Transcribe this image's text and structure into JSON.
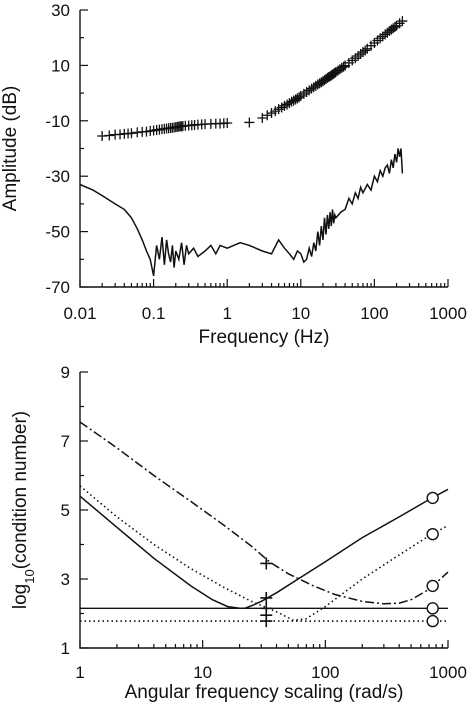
{
  "chart_data": [
    {
      "type": "line",
      "xlabel": "Frequency (Hz)",
      "ylabel": "Amplitude (dB)",
      "x_scale": "log",
      "xlim": [
        0.01,
        1000
      ],
      "ylim": [
        -70,
        30
      ],
      "x_ticks": [
        {
          "value": 0.01,
          "label": "0.01"
        },
        {
          "value": 0.1,
          "label": "0.1"
        },
        {
          "value": 1,
          "label": "1"
        },
        {
          "value": 10,
          "label": "10"
        },
        {
          "value": 100,
          "label": "100"
        },
        {
          "value": 1000,
          "label": "1000"
        }
      ],
      "y_ticks": [
        {
          "value": 30,
          "label": "30"
        },
        {
          "value": 10,
          "label": "10"
        },
        {
          "value": -10,
          "label": "-10"
        },
        {
          "value": -30,
          "label": "-30"
        },
        {
          "value": -50,
          "label": "-50"
        },
        {
          "value": -70,
          "label": "-70"
        }
      ],
      "grid": false,
      "series": [
        {
          "style": "cross-markers",
          "x": [
            0.02,
            0.025,
            0.03,
            0.035,
            0.04,
            0.045,
            0.05,
            0.06,
            0.07,
            0.08,
            0.09,
            0.1,
            0.11,
            0.12,
            0.13,
            0.14,
            0.15,
            0.16,
            0.17,
            0.18,
            0.19,
            0.2,
            0.21,
            0.22,
            0.23,
            0.24,
            0.25,
            0.27,
            0.3,
            0.33,
            0.36,
            0.4,
            0.45,
            0.5,
            0.6,
            0.7,
            0.8,
            0.9,
            1.0,
            2.0,
            3.0,
            3.5,
            4.0,
            4.5,
            5.0,
            5.5,
            6.0,
            6.5,
            7.0,
            7.5,
            8.0,
            8.5,
            9.0,
            9.5,
            10,
            11,
            12,
            13,
            14,
            15,
            16,
            17,
            18,
            19,
            20,
            21,
            22,
            23,
            24,
            25,
            26,
            27,
            28,
            29,
            30,
            32,
            34,
            36,
            38,
            40,
            45,
            50,
            55,
            60,
            65,
            70,
            75,
            80,
            90,
            100,
            110,
            120,
            130,
            140,
            150,
            160,
            170,
            180,
            190,
            200,
            220,
            240
          ],
          "y": [
            -15.5,
            -15.3,
            -15.0,
            -14.9,
            -14.7,
            -14.6,
            -14.5,
            -14.2,
            -14.0,
            -13.9,
            -13.7,
            -13.5,
            -13.3,
            -13.2,
            -13.0,
            -12.9,
            -12.8,
            -12.7,
            -12.6,
            -12.5,
            -12.4,
            -12.3,
            -12.2,
            -12.1,
            -12.0,
            -12.0,
            -11.9,
            -11.8,
            -11.7,
            -11.6,
            -11.5,
            -11.4,
            -11.3,
            -11.2,
            -11.1,
            -11.0,
            -11.0,
            -10.9,
            -10.8,
            -10.6,
            -9.0,
            -8.0,
            -7.2,
            -6.5,
            -5.8,
            -5.2,
            -4.6,
            -4.1,
            -3.6,
            -3.1,
            -2.7,
            -2.3,
            -1.9,
            -1.5,
            -1.0,
            -0.3,
            0.4,
            1.0,
            1.6,
            2.1,
            2.6,
            3.1,
            3.5,
            3.9,
            4.3,
            4.7,
            5.1,
            5.5,
            5.8,
            6.1,
            6.4,
            6.7,
            7.0,
            7.3,
            7.6,
            8.1,
            8.6,
            9.1,
            9.5,
            9.9,
            10.9,
            11.8,
            12.6,
            13.4,
            14.1,
            14.8,
            15.4,
            16.0,
            17.1,
            18.1,
            19.0,
            19.8,
            20.5,
            21.2,
            21.8,
            22.4,
            22.9,
            23.4,
            23.9,
            24.3,
            25.2,
            26.0
          ]
        },
        {
          "style": "solid",
          "x": [
            0.01,
            0.015,
            0.02,
            0.03,
            0.04,
            0.05,
            0.06,
            0.07,
            0.08,
            0.09,
            0.1,
            0.11,
            0.12,
            0.13,
            0.14,
            0.15,
            0.16,
            0.17,
            0.18,
            0.19,
            0.2,
            0.22,
            0.24,
            0.26,
            0.28,
            0.3,
            0.35,
            0.4,
            0.5,
            0.6,
            0.7,
            0.8,
            1.0,
            1.5,
            2.0,
            3.0,
            4.0,
            5.0,
            6.0,
            7.0,
            8.0,
            9.0,
            10,
            11,
            12,
            13,
            14,
            15,
            16,
            17,
            18,
            19,
            20,
            21,
            22,
            23,
            24,
            25,
            26,
            27,
            28,
            29,
            30,
            35,
            40,
            45,
            50,
            55,
            60,
            65,
            70,
            80,
            90,
            100,
            110,
            120,
            130,
            140,
            150,
            160,
            170,
            180,
            190,
            200,
            210,
            220,
            230,
            240
          ],
          "y": [
            -33,
            -35,
            -37,
            -40,
            -42,
            -45,
            -49,
            -53,
            -57,
            -60,
            -66,
            -55,
            -60,
            -52,
            -62,
            -53,
            -58,
            -61,
            -55,
            -63,
            -57,
            -60,
            -54,
            -62,
            -55,
            -58,
            -56,
            -59,
            -57,
            -55,
            -58,
            -55,
            -56,
            -54,
            -55,
            -57,
            -58,
            -53,
            -56,
            -58,
            -60,
            -57,
            -58,
            -61,
            -60,
            -56,
            -59,
            -54,
            -57,
            -50,
            -55,
            -48,
            -53,
            -45,
            -51,
            -44,
            -49,
            -43,
            -48,
            -42,
            -47,
            -44,
            -45,
            -43,
            -42,
            -38,
            -40,
            -36,
            -38,
            -34,
            -36,
            -33,
            -35,
            -30,
            -32,
            -28,
            -30,
            -27,
            -26,
            -29,
            -24,
            -27,
            -22,
            -25,
            -20,
            -23,
            -20,
            -29
          ]
        }
      ]
    },
    {
      "type": "line",
      "xlabel": "Angular frequency scaling (rad/s)",
      "ylabel_parts": {
        "pre": "log",
        "sub": "10",
        "post": "(condition number)"
      },
      "x_scale": "log",
      "xlim": [
        1,
        1000
      ],
      "ylim": [
        1,
        9
      ],
      "x_ticks": [
        {
          "value": 1,
          "label": "1"
        },
        {
          "value": 10,
          "label": "10"
        },
        {
          "value": 100,
          "label": "100"
        },
        {
          "value": 1000,
          "label": "1000"
        }
      ],
      "y_ticks": [
        {
          "value": 1,
          "label": "1"
        },
        {
          "value": 3,
          "label": "3"
        },
        {
          "value": 5,
          "label": "5"
        },
        {
          "value": 7,
          "label": "7"
        },
        {
          "value": 9,
          "label": "9"
        }
      ],
      "grid": false,
      "series": [
        {
          "style": "solid",
          "x": [
            1,
            2,
            4,
            8,
            12,
            16,
            20,
            22,
            24,
            26,
            30,
            40,
            60,
            100,
            200,
            400,
            700,
            1000
          ],
          "y": [
            5.4,
            4.5,
            3.6,
            2.8,
            2.4,
            2.2,
            2.15,
            2.15,
            2.2,
            2.25,
            2.35,
            2.6,
            3.0,
            3.5,
            4.2,
            4.8,
            5.3,
            5.6
          ]
        },
        {
          "style": "dotted",
          "x": [
            1,
            2,
            4,
            8,
            15,
            25,
            40,
            55,
            70,
            100,
            200,
            400,
            700,
            1000
          ],
          "y": [
            5.7,
            4.8,
            4.0,
            3.3,
            2.75,
            2.35,
            2.05,
            1.8,
            1.85,
            2.2,
            3.0,
            3.7,
            4.25,
            4.55
          ]
        },
        {
          "style": "dash-dot",
          "x": [
            1,
            2,
            4,
            8,
            15,
            25,
            35,
            50,
            80,
            120,
            200,
            300,
            400,
            500,
            700,
            1000
          ],
          "y": [
            7.55,
            6.8,
            6.0,
            5.25,
            4.55,
            3.95,
            3.5,
            3.15,
            2.8,
            2.55,
            2.35,
            2.28,
            2.3,
            2.4,
            2.7,
            3.2
          ]
        },
        {
          "style": "solid-flat",
          "x": [
            1,
            1000
          ],
          "y": [
            2.15,
            2.15
          ]
        },
        {
          "style": "dotted-flat",
          "x": [
            1,
            1000
          ],
          "y": [
            1.78,
            1.78
          ]
        }
      ],
      "markers": [
        {
          "symbol": "+",
          "x": 33,
          "y": 3.45
        },
        {
          "symbol": "+",
          "x": 33,
          "y": 2.45
        },
        {
          "symbol": "+",
          "x": 33,
          "y": 2.15
        },
        {
          "symbol": "+",
          "x": 33,
          "y": 1.95
        },
        {
          "symbol": "+",
          "x": 33,
          "y": 1.78
        },
        {
          "symbol": "o",
          "x": 750,
          "y": 5.35
        },
        {
          "symbol": "o",
          "x": 750,
          "y": 4.3
        },
        {
          "symbol": "o",
          "x": 750,
          "y": 2.8
        },
        {
          "symbol": "o",
          "x": 750,
          "y": 2.15
        },
        {
          "symbol": "o",
          "x": 750,
          "y": 1.78
        }
      ]
    }
  ]
}
